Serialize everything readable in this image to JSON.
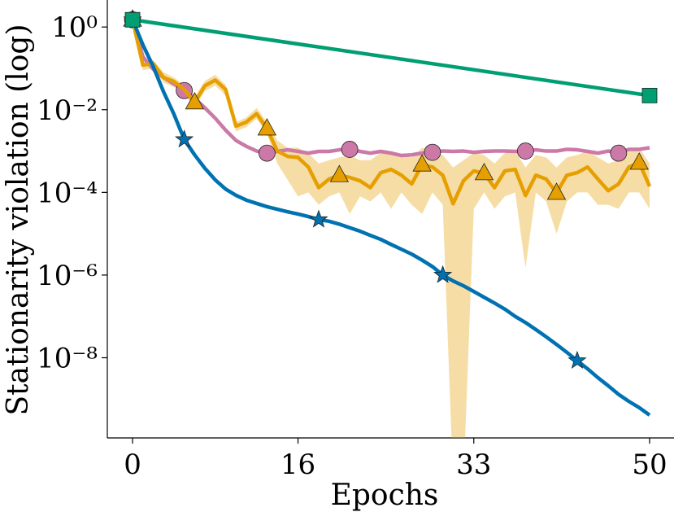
{
  "chart_data": {
    "type": "line",
    "xlabel": "Epochs",
    "ylabel": "Stationarity violation (log)",
    "xlim": [
      -2.44,
      52.36
    ],
    "xticks": [
      0,
      16,
      33,
      50
    ],
    "ylim": [
      1.15e-10,
      4.5
    ],
    "log_y": true,
    "yticks": [
      {
        "value": 1,
        "label": "10⁰"
      },
      {
        "value": 0.01,
        "label": "10⁻²"
      },
      {
        "value": 0.0001,
        "label": "10⁻⁴"
      },
      {
        "value": 1e-06,
        "label": "10⁻⁶"
      },
      {
        "value": 1e-08,
        "label": "10⁻⁸"
      }
    ],
    "x": [
      0,
      1,
      2,
      3,
      4,
      5,
      6,
      7,
      8,
      9,
      10,
      11,
      12,
      13,
      14,
      15,
      16,
      17,
      18,
      19,
      20,
      21,
      22,
      23,
      24,
      25,
      26,
      27,
      28,
      29,
      30,
      31,
      32,
      33,
      34,
      35,
      36,
      37,
      38,
      39,
      40,
      41,
      42,
      43,
      44,
      45,
      46,
      47,
      48,
      49,
      50
    ],
    "series": [
      {
        "color": "#cc79a7",
        "marker": "circle",
        "markers_at": [
          0,
          5,
          13,
          21,
          29,
          38,
          47
        ],
        "values": [
          1.5,
          0.19,
          0.095,
          0.06,
          0.042,
          0.029,
          0.019,
          0.011,
          0.0062,
          0.0032,
          0.0018,
          0.0013,
          0.001,
          0.00089,
          0.00098,
          0.00107,
          0.00098,
          0.00089,
          0.00098,
          0.00098,
          0.00107,
          0.0011,
          0.00098,
          0.00089,
          0.00098,
          0.00089,
          0.00078,
          0.00081,
          0.00089,
          0.00093,
          0.001,
          0.00098,
          0.001,
          0.00093,
          0.00098,
          0.001,
          0.001,
          0.00098,
          0.001,
          0.00107,
          0.001,
          0.001,
          0.0011,
          0.00107,
          0.00098,
          0.00089,
          0.001,
          0.00089,
          0.0011,
          0.0011,
          0.0012
        ]
      },
      {
        "color": "#e69f00",
        "marker": "triangle",
        "markers_at": [
          0,
          6,
          13,
          20,
          28,
          34,
          41,
          49
        ],
        "values": [
          1.5,
          0.12,
          0.13,
          0.06,
          0.048,
          0.031,
          0.015,
          0.038,
          0.052,
          0.031,
          0.004,
          0.005,
          0.008,
          0.0035,
          0.001,
          0.00074,
          0.0007,
          0.00041,
          0.00013,
          0.00021,
          0.00026,
          0.00023,
          0.00019,
          0.00013,
          0.0003,
          0.00036,
          0.00026,
          0.00016,
          0.00047,
          0.00041,
          0.00026,
          5.3e-05,
          0.00019,
          0.00033,
          0.00029,
          0.00013,
          0.00033,
          0.00036,
          8.4e-05,
          0.00026,
          0.00021,
          9.7e-05,
          0.00026,
          0.0003,
          0.00041,
          0.00021,
          0.00011,
          0.00016,
          0.00041,
          0.00052,
          0.00014
        ],
        "lower": [
          1.4,
          0.09,
          0.1,
          0.045,
          0.035,
          0.024,
          0.011,
          0.028,
          0.038,
          0.022,
          0.003,
          0.0038,
          0.006,
          0.0026,
          0.0005,
          0.0002,
          8e-05,
          0.0001,
          5e-05,
          8e-05,
          0.0001,
          3e-05,
          8e-05,
          6e-05,
          0.0001,
          4e-05,
          0.0001,
          5e-05,
          3e-05,
          0.0001,
          5e-05,
          1e-11,
          1e-11,
          4e-05,
          0.0001,
          4e-05,
          8e-05,
          0.0001,
          1.5e-06,
          0.0001,
          6e-05,
          1e-05,
          6e-05,
          0.0001,
          0.0001,
          5e-05,
          5e-05,
          4e-05,
          0.0001,
          0.0001,
          4e-05
        ],
        "upper": [
          1.6,
          0.15,
          0.16,
          0.08,
          0.06,
          0.04,
          0.02,
          0.05,
          0.07,
          0.04,
          0.005,
          0.0065,
          0.011,
          0.005,
          0.0018,
          0.0012,
          0.0012,
          0.0009,
          0.0005,
          0.0006,
          0.0007,
          0.0008,
          0.0006,
          0.0006,
          0.0009,
          0.001,
          0.0008,
          0.0007,
          0.0012,
          0.001,
          0.0008,
          0.0004,
          0.0006,
          0.0009,
          0.0008,
          0.0005,
          0.0009,
          0.001,
          0.0004,
          0.0008,
          0.0007,
          0.0004,
          0.0007,
          0.0008,
          0.001,
          0.0007,
          0.0005,
          0.0006,
          0.001,
          0.0012,
          0.0005
        ]
      },
      {
        "color": "#0072b2",
        "marker": "star",
        "markers_at": [
          0,
          5,
          18,
          30,
          43
        ],
        "values": [
          1.5,
          0.37,
          0.11,
          0.027,
          0.0078,
          0.0019,
          0.00081,
          0.00038,
          0.0002,
          0.00012,
          8.5e-05,
          6.5e-05,
          5.4e-05,
          4.5e-05,
          3.9e-05,
          3.4e-05,
          3e-05,
          2.6e-05,
          2.2e-05,
          2e-05,
          1.7e-05,
          1.4e-05,
          1.15e-05,
          9.1e-06,
          7.3e-06,
          5.5e-06,
          4.2e-06,
          3.2e-06,
          2.3e-06,
          1.6e-06,
          1e-06,
          7.2e-07,
          5.5e-07,
          4e-07,
          2.9e-07,
          2.1e-07,
          1.5e-07,
          1e-07,
          7.1e-08,
          4.8e-08,
          3.2e-08,
          2.1e-08,
          1.35e-08,
          8.5e-09,
          5.4e-09,
          3.3e-09,
          2.1e-09,
          1.3e-09,
          8.8e-10,
          6.2e-10,
          4.1e-10
        ]
      },
      {
        "color": "#009e73",
        "marker": "square",
        "markers_at": [
          0,
          1
        ],
        "x": [
          0,
          50
        ],
        "values": [
          1.5,
          0.022
        ]
      }
    ]
  }
}
